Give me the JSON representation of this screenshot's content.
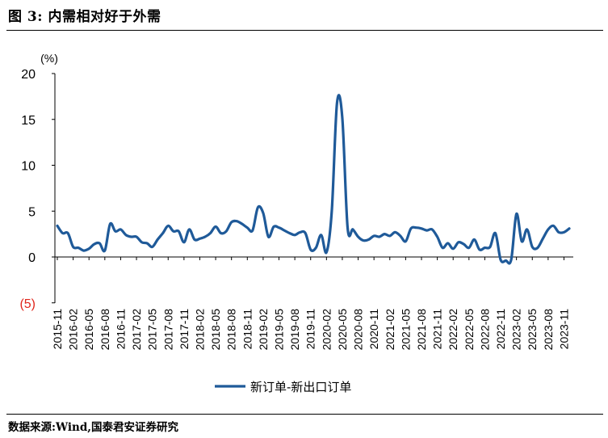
{
  "figure": {
    "title": "图 3:  内需相对好于外需",
    "source": "数据来源:Wind,国泰君安证券研究"
  },
  "chart_data": {
    "type": "line",
    "title": "",
    "ylabel": "(%)",
    "xlabel": "",
    "ylim": [
      -5,
      20
    ],
    "yticks": [
      {
        "value": 20,
        "label": "20"
      },
      {
        "value": 15,
        "label": "15"
      },
      {
        "value": 10,
        "label": "10"
      },
      {
        "value": 5,
        "label": "5"
      },
      {
        "value": 0,
        "label": "0"
      },
      {
        "value": -5,
        "label": "(5)"
      }
    ],
    "negative_tick_color": "#e0261c",
    "line_color": "#1f5a99",
    "legend_position": "bottom-center",
    "xtick_labels": [
      "2015-11",
      "2016-02",
      "2016-05",
      "2016-08",
      "2016-11",
      "2017-02",
      "2017-05",
      "2017-08",
      "2017-11",
      "2018-02",
      "2018-05",
      "2018-08",
      "2018-11",
      "2019-02",
      "2019-05",
      "2019-08",
      "2019-11",
      "2020-02",
      "2020-05",
      "2020-08",
      "2020-11",
      "2021-02",
      "2021-05",
      "2021-08",
      "2021-11",
      "2022-02",
      "2022-05",
      "2022-08",
      "2022-11",
      "2023-02",
      "2023-05",
      "2023-08",
      "2023-11"
    ],
    "series": [
      {
        "name": "新订单-新出口订单",
        "x": [
          "2015-11",
          "2015-12",
          "2016-01",
          "2016-02",
          "2016-03",
          "2016-04",
          "2016-05",
          "2016-06",
          "2016-07",
          "2016-08",
          "2016-09",
          "2016-10",
          "2016-11",
          "2016-12",
          "2017-01",
          "2017-02",
          "2017-03",
          "2017-04",
          "2017-05",
          "2017-06",
          "2017-07",
          "2017-08",
          "2017-09",
          "2017-10",
          "2017-11",
          "2017-12",
          "2018-01",
          "2018-02",
          "2018-03",
          "2018-04",
          "2018-05",
          "2018-06",
          "2018-07",
          "2018-08",
          "2018-09",
          "2018-10",
          "2018-11",
          "2018-12",
          "2019-01",
          "2019-02",
          "2019-03",
          "2019-04",
          "2019-05",
          "2019-06",
          "2019-07",
          "2019-08",
          "2019-09",
          "2019-10",
          "2019-11",
          "2019-12",
          "2020-01",
          "2020-02",
          "2020-03",
          "2020-04",
          "2020-05",
          "2020-06",
          "2020-07",
          "2020-08",
          "2020-09",
          "2020-10",
          "2020-11",
          "2020-12",
          "2021-01",
          "2021-02",
          "2021-03",
          "2021-04",
          "2021-05",
          "2021-06",
          "2021-07",
          "2021-08",
          "2021-09",
          "2021-10",
          "2021-11",
          "2021-12",
          "2022-01",
          "2022-02",
          "2022-03",
          "2022-04",
          "2022-05",
          "2022-06",
          "2022-07",
          "2022-08",
          "2022-09",
          "2022-10",
          "2022-11",
          "2022-12",
          "2023-01",
          "2023-02",
          "2023-03",
          "2023-04",
          "2023-05",
          "2023-06",
          "2023-07",
          "2023-08",
          "2023-09",
          "2023-10",
          "2023-11",
          "2023-12"
        ],
        "values": [
          3.4,
          2.6,
          2.6,
          1.1,
          1.0,
          0.7,
          0.9,
          1.4,
          1.5,
          0.7,
          3.6,
          2.8,
          3.0,
          2.4,
          2.2,
          2.2,
          1.6,
          1.5,
          1.1,
          1.9,
          2.6,
          3.4,
          2.8,
          2.8,
          1.6,
          3.0,
          1.9,
          2.0,
          2.2,
          2.6,
          3.3,
          2.6,
          2.8,
          3.8,
          3.9,
          3.6,
          3.2,
          2.9,
          5.4,
          4.8,
          2.2,
          3.3,
          3.2,
          2.9,
          2.6,
          2.4,
          2.7,
          2.6,
          0.8,
          1.0,
          2.4,
          0.5,
          5.0,
          16.8,
          15.2,
          3.2,
          3.0,
          2.2,
          1.8,
          1.9,
          2.3,
          2.2,
          2.5,
          2.3,
          2.7,
          2.3,
          1.7,
          3.1,
          3.2,
          3.1,
          2.9,
          3.0,
          2.2,
          1.0,
          1.5,
          0.9,
          1.6,
          1.4,
          1.0,
          1.9,
          0.8,
          1.0,
          1.1,
          2.6,
          -0.3,
          -0.4,
          -0.3,
          4.7,
          1.7,
          3.0,
          1.1,
          1.0,
          2.0,
          3.0,
          3.4,
          2.7,
          2.7,
          3.1
        ]
      }
    ]
  }
}
